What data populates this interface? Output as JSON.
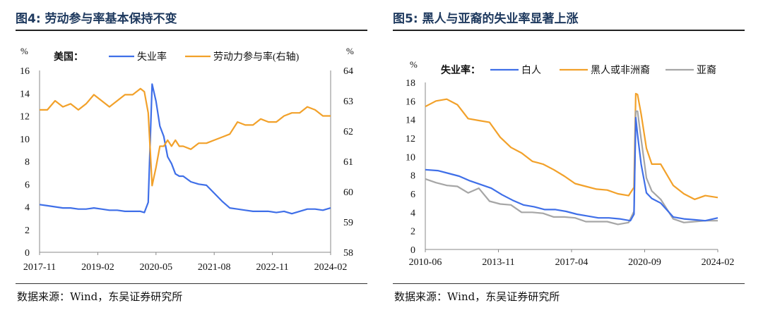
{
  "panels": [
    {
      "title": "图4:  劳动参与率基本保持不变",
      "source": "数据来源：Wind，东吴证券研究所"
    },
    {
      "title": "图5:  黑人与亚裔的失业率显著上涨",
      "source": "数据来源：Wind，东吴证券研究所"
    }
  ],
  "chart_data": [
    {
      "type": "line",
      "title": "",
      "legend_title": "美国：",
      "ylabel_left": "%",
      "ylabel_right": "%",
      "x_ticks": [
        "2017-11",
        "2019-02",
        "2020-05",
        "2021-08",
        "2022-11",
        "2024-02"
      ],
      "y_left": {
        "min": 0,
        "max": 16,
        "ticks": [
          0,
          2,
          4,
          6,
          8,
          10,
          12,
          14,
          16
        ]
      },
      "y_right": {
        "min": 58,
        "max": 64,
        "ticks": [
          58,
          59,
          60,
          61,
          62,
          63,
          64
        ]
      },
      "colors": {
        "unemployment": "#3f6fe8",
        "participation": "#f2a12a"
      },
      "series": [
        {
          "name": "失业率",
          "axis": "left",
          "x": [
            "2017-11",
            "2018-01",
            "2018-03",
            "2018-05",
            "2018-07",
            "2018-09",
            "2018-11",
            "2019-01",
            "2019-03",
            "2019-05",
            "2019-07",
            "2019-09",
            "2019-11",
            "2020-01",
            "2020-02",
            "2020-03",
            "2020-04",
            "2020-05",
            "2020-06",
            "2020-07",
            "2020-08",
            "2020-09",
            "2020-10",
            "2020-11",
            "2020-12",
            "2021-02",
            "2021-04",
            "2021-06",
            "2021-08",
            "2021-10",
            "2021-12",
            "2022-02",
            "2022-04",
            "2022-06",
            "2022-08",
            "2022-10",
            "2022-12",
            "2023-02",
            "2023-04",
            "2023-06",
            "2023-08",
            "2023-10",
            "2023-12",
            "2024-02"
          ],
          "values": [
            4.2,
            4.1,
            4.0,
            3.9,
            3.9,
            3.8,
            3.8,
            3.9,
            3.8,
            3.7,
            3.7,
            3.6,
            3.6,
            3.6,
            3.5,
            4.4,
            14.8,
            13.3,
            11.1,
            10.2,
            8.4,
            7.8,
            6.9,
            6.7,
            6.7,
            6.2,
            6.0,
            5.9,
            5.2,
            4.5,
            3.9,
            3.8,
            3.7,
            3.6,
            3.6,
            3.6,
            3.5,
            3.6,
            3.4,
            3.6,
            3.8,
            3.8,
            3.7,
            3.9
          ]
        },
        {
          "name": "劳动力参与率(右轴)",
          "axis": "right",
          "x": [
            "2017-11",
            "2018-01",
            "2018-03",
            "2018-05",
            "2018-07",
            "2018-09",
            "2018-11",
            "2019-01",
            "2019-03",
            "2019-05",
            "2019-07",
            "2019-09",
            "2019-11",
            "2020-01",
            "2020-02",
            "2020-03",
            "2020-04",
            "2020-05",
            "2020-06",
            "2020-07",
            "2020-08",
            "2020-09",
            "2020-10",
            "2020-11",
            "2020-12",
            "2021-02",
            "2021-04",
            "2021-06",
            "2021-08",
            "2021-10",
            "2021-12",
            "2022-02",
            "2022-04",
            "2022-06",
            "2022-08",
            "2022-10",
            "2022-12",
            "2023-02",
            "2023-04",
            "2023-06",
            "2023-08",
            "2023-10",
            "2023-12",
            "2024-02"
          ],
          "values": [
            62.7,
            62.7,
            63.0,
            62.8,
            62.9,
            62.7,
            62.9,
            63.2,
            63.0,
            62.8,
            63.0,
            63.2,
            63.2,
            63.4,
            63.3,
            62.6,
            60.2,
            60.8,
            61.5,
            61.5,
            61.7,
            61.5,
            61.7,
            61.5,
            61.5,
            61.4,
            61.6,
            61.6,
            61.7,
            61.8,
            61.9,
            62.3,
            62.2,
            62.2,
            62.4,
            62.3,
            62.3,
            62.5,
            62.6,
            62.6,
            62.8,
            62.7,
            62.5,
            62.5
          ]
        }
      ]
    },
    {
      "type": "line",
      "title": "",
      "legend_title": "失业率：",
      "ylabel_left": "%",
      "x_ticks": [
        "2010-06",
        "2013-11",
        "2017-04",
        "2020-09",
        "2024-02"
      ],
      "y_left": {
        "min": 0,
        "max": 18,
        "ticks": [
          0,
          2,
          4,
          6,
          8,
          10,
          12,
          14,
          16,
          18
        ]
      },
      "colors": {
        "white": "#3f6fe8",
        "black": "#f2a12a",
        "asian": "#a6a6a6"
      },
      "series": [
        {
          "name": "白人",
          "x": [
            "2010-06",
            "2011-01",
            "2011-07",
            "2012-01",
            "2012-07",
            "2013-01",
            "2013-07",
            "2014-01",
            "2014-07",
            "2015-01",
            "2015-07",
            "2016-01",
            "2016-07",
            "2017-01",
            "2017-07",
            "2018-01",
            "2018-07",
            "2019-01",
            "2019-07",
            "2020-01",
            "2020-03",
            "2020-04",
            "2020-05",
            "2020-07",
            "2020-10",
            "2021-01",
            "2021-06",
            "2022-01",
            "2022-07",
            "2023-01",
            "2023-07",
            "2024-02"
          ],
          "values": [
            8.6,
            8.5,
            8.2,
            7.9,
            7.4,
            7.0,
            6.6,
            5.9,
            5.3,
            4.8,
            4.6,
            4.3,
            4.3,
            4.1,
            3.8,
            3.6,
            3.4,
            3.4,
            3.3,
            3.1,
            3.8,
            14.2,
            12.4,
            9.2,
            6.1,
            5.5,
            5.0,
            3.5,
            3.3,
            3.2,
            3.1,
            3.4
          ]
        },
        {
          "name": "黑人或非洲裔",
          "x": [
            "2010-06",
            "2010-12",
            "2011-06",
            "2011-12",
            "2012-06",
            "2012-12",
            "2013-06",
            "2013-12",
            "2014-06",
            "2014-12",
            "2015-06",
            "2015-12",
            "2016-06",
            "2016-12",
            "2017-06",
            "2017-12",
            "2018-06",
            "2018-12",
            "2019-06",
            "2019-12",
            "2020-03",
            "2020-04",
            "2020-05",
            "2020-07",
            "2020-10",
            "2021-01",
            "2021-06",
            "2022-01",
            "2022-07",
            "2023-01",
            "2023-07",
            "2024-02"
          ],
          "values": [
            15.4,
            16.0,
            16.2,
            15.6,
            14.1,
            13.9,
            13.7,
            12.1,
            11.0,
            10.4,
            9.5,
            9.2,
            8.6,
            7.9,
            7.1,
            6.8,
            6.5,
            6.4,
            6.0,
            5.8,
            6.7,
            16.8,
            16.7,
            14.6,
            10.9,
            9.2,
            9.2,
            6.9,
            6.0,
            5.4,
            5.8,
            5.6
          ]
        },
        {
          "name": "亚裔",
          "x": [
            "2010-06",
            "2010-12",
            "2011-06",
            "2011-12",
            "2012-06",
            "2012-12",
            "2013-06",
            "2013-12",
            "2014-06",
            "2014-12",
            "2015-06",
            "2015-12",
            "2016-06",
            "2016-12",
            "2017-06",
            "2017-12",
            "2018-06",
            "2018-12",
            "2019-06",
            "2019-12",
            "2020-03",
            "2020-04",
            "2020-05",
            "2020-07",
            "2020-10",
            "2021-01",
            "2021-06",
            "2022-01",
            "2022-07",
            "2023-01",
            "2023-07",
            "2024-02"
          ],
          "values": [
            7.6,
            7.2,
            6.9,
            6.8,
            6.1,
            6.6,
            5.2,
            4.9,
            4.8,
            4.0,
            4.0,
            3.9,
            3.5,
            3.5,
            3.4,
            3.0,
            3.0,
            3.0,
            2.7,
            2.9,
            4.1,
            14.9,
            14.9,
            11.9,
            7.7,
            6.3,
            5.4,
            3.3,
            2.9,
            3.0,
            3.1,
            3.1
          ]
        }
      ]
    }
  ]
}
